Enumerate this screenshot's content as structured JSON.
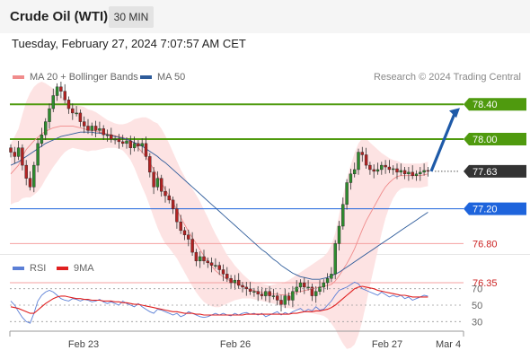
{
  "header": {
    "instrument": "Crude Oil (WTI)",
    "timeframe": "30 MIN"
  },
  "timestamp": "Tuesday, February 27, 2024 7:07:57 AM CET",
  "legend": {
    "ma20_label": "MA 20 + Bollinger Bands",
    "ma20_color": "#f08c8c",
    "ma50_label": "MA 50",
    "ma50_color": "#2d5b9a",
    "credit": "Research © 2024 Trading Central"
  },
  "rsi_legend": {
    "rsi_label": "RSI",
    "rsi_color": "#5b7fd6",
    "ma_label": "9MA",
    "ma_color": "#e02020"
  },
  "colors": {
    "target_green": "#4f9a0e",
    "pivot_blue": "#1e64dc",
    "support_red": "#f4a0a0",
    "support_text": "#cc2222",
    "last_price_bg": "#333333",
    "band_fill": "#fde0e0",
    "candle_green": "#2e8b2e",
    "candle_red": "#b22222",
    "arrow": "#1e5aa8"
  },
  "chart_data": [
    {
      "type": "candlestick",
      "x_ticks": [
        "Feb 23",
        "Feb 26",
        "Feb 27",
        "Mar 4"
      ],
      "y_range": [
        75.9,
        78.7
      ],
      "levels": [
        {
          "label": "78.40",
          "value": 78.4,
          "role": "target"
        },
        {
          "label": "78.00",
          "value": 78.0,
          "role": "target"
        },
        {
          "label": "77.63",
          "value": 77.63,
          "role": "last"
        },
        {
          "label": "77.20",
          "value": 77.2,
          "role": "pivot"
        },
        {
          "label": "76.80",
          "value": 76.8,
          "role": "support"
        },
        {
          "label": "76.35",
          "value": 76.35,
          "role": "support"
        }
      ],
      "close": [
        77.85,
        77.8,
        77.9,
        77.7,
        77.55,
        77.45,
        77.7,
        77.95,
        78.05,
        78.2,
        78.35,
        78.5,
        78.6,
        78.55,
        78.45,
        78.35,
        78.3,
        78.3,
        78.2,
        78.15,
        78.1,
        78.15,
        78.1,
        78.12,
        78.05,
        78.05,
        78.0,
        78.0,
        77.97,
        77.95,
        77.98,
        77.9,
        77.95,
        77.92,
        77.95,
        77.8,
        77.62,
        77.45,
        77.55,
        77.4,
        77.35,
        77.3,
        77.2,
        77.05,
        76.95,
        76.9,
        76.85,
        76.7,
        76.6,
        76.65,
        76.6,
        76.58,
        76.55,
        76.55,
        76.5,
        76.45,
        76.4,
        76.35,
        76.38,
        76.32,
        76.3,
        76.28,
        76.25,
        76.25,
        76.22,
        76.2,
        76.25,
        76.2,
        76.2,
        76.15,
        76.1,
        76.2,
        76.15,
        76.25,
        76.3,
        76.35,
        76.3,
        76.3,
        76.2,
        76.25,
        76.3,
        76.35,
        76.4,
        76.45,
        76.8,
        77.0,
        77.25,
        77.5,
        77.6,
        77.65,
        77.85,
        77.82,
        77.7,
        77.65,
        77.63,
        77.65,
        77.7,
        77.68,
        77.65,
        77.66,
        77.62,
        77.64,
        77.6,
        77.62,
        77.58,
        77.6,
        77.62,
        77.64,
        77.63
      ],
      "ma20": [
        77.6,
        77.65,
        77.7,
        77.8,
        77.88,
        77.93,
        77.98,
        78.02,
        78.06,
        78.09,
        78.11,
        78.13,
        78.14,
        78.15,
        78.15,
        78.15,
        78.15,
        78.14,
        78.13,
        78.12,
        78.1,
        78.1,
        78.09,
        78.08,
        78.07,
        78.06,
        78.05,
        78.04,
        78.03,
        78.02,
        78.0,
        77.98,
        77.95,
        77.9,
        77.85,
        77.8,
        77.73,
        77.65,
        77.58,
        77.5,
        77.42,
        77.35,
        77.27,
        77.19,
        77.1,
        77.02,
        76.94,
        76.87,
        76.8,
        76.73,
        76.66,
        76.6,
        76.54,
        76.49,
        76.45,
        76.42,
        76.39,
        76.37,
        76.35,
        76.33,
        76.31,
        76.29,
        76.27,
        76.26,
        76.25,
        76.24,
        76.23,
        76.22,
        76.22,
        76.22,
        76.21,
        76.21,
        76.22,
        76.23,
        76.24,
        76.25,
        76.26,
        76.27,
        76.28,
        76.29,
        76.3,
        76.31,
        76.32,
        76.33,
        76.37,
        76.43,
        76.5,
        76.57,
        76.65,
        76.74,
        76.85,
        76.96,
        77.06,
        77.14,
        77.22,
        77.3,
        77.38,
        77.45,
        77.5,
        77.54,
        77.57,
        77.58,
        77.58,
        77.58,
        77.58,
        77.58,
        77.58,
        77.59,
        77.6
      ],
      "ma50": [
        77.7,
        77.72,
        77.74,
        77.77,
        77.8,
        77.83,
        77.86,
        77.89,
        77.92,
        77.95,
        77.97,
        77.99,
        78.01,
        78.03,
        78.04,
        78.05,
        78.06,
        78.07,
        78.08,
        78.08,
        78.08,
        78.08,
        78.07,
        78.07,
        78.06,
        78.05,
        78.04,
        78.03,
        78.02,
        78.01,
        78.0,
        77.98,
        77.96,
        77.94,
        77.92,
        77.89,
        77.86,
        77.83,
        77.8,
        77.76,
        77.73,
        77.69,
        77.65,
        77.61,
        77.57,
        77.53,
        77.49,
        77.45,
        77.41,
        77.37,
        77.33,
        77.29,
        77.25,
        77.21,
        77.17,
        77.13,
        77.09,
        77.05,
        77.01,
        76.97,
        76.93,
        76.89,
        76.85,
        76.81,
        76.77,
        76.73,
        76.7,
        76.66,
        76.62,
        76.59,
        76.55,
        76.52,
        76.49,
        76.46,
        76.44,
        76.42,
        76.41,
        76.4,
        76.39,
        76.39,
        76.39,
        76.4,
        76.41,
        76.43,
        76.45,
        76.47,
        76.5,
        76.53,
        76.56,
        76.59,
        76.62,
        76.65,
        76.68,
        76.71,
        76.74,
        76.77,
        76.8,
        76.83,
        76.86,
        76.89,
        76.92,
        76.95,
        76.98,
        77.01,
        77.04,
        77.07,
        77.1,
        77.13,
        77.16
      ],
      "bb_width": [
        0.35,
        0.38,
        0.42,
        0.48,
        0.55,
        0.6,
        0.62,
        0.62,
        0.6,
        0.55,
        0.5,
        0.45,
        0.4,
        0.35,
        0.3,
        0.27,
        0.25,
        0.25,
        0.25,
        0.25,
        0.24,
        0.23,
        0.22,
        0.2,
        0.18,
        0.16,
        0.15,
        0.14,
        0.14,
        0.15,
        0.18,
        0.22,
        0.28,
        0.34,
        0.4,
        0.45,
        0.5,
        0.55,
        0.6,
        0.62,
        0.62,
        0.6,
        0.58,
        0.56,
        0.55,
        0.55,
        0.55,
        0.56,
        0.56,
        0.55,
        0.53,
        0.5,
        0.46,
        0.42,
        0.38,
        0.33,
        0.28,
        0.24,
        0.2,
        0.17,
        0.14,
        0.12,
        0.1,
        0.1,
        0.1,
        0.1,
        0.1,
        0.1,
        0.11,
        0.12,
        0.13,
        0.15,
        0.16,
        0.18,
        0.2,
        0.22,
        0.24,
        0.26,
        0.28,
        0.3,
        0.32,
        0.34,
        0.38,
        0.45,
        0.55,
        0.7,
        0.85,
        0.98,
        1.05,
        1.1,
        1.1,
        1.05,
        0.95,
        0.82,
        0.7,
        0.58,
        0.46,
        0.36,
        0.28,
        0.22,
        0.18,
        0.15,
        0.14,
        0.14,
        0.14,
        0.14,
        0.14,
        0.14,
        0.14
      ],
      "target_arrow": {
        "from": 77.63,
        "to": 78.4
      }
    },
    {
      "type": "line",
      "y_ticks": [
        "70",
        "50",
        "30"
      ],
      "y_range": [
        20,
        80
      ],
      "rsi": [
        55,
        50,
        42,
        35,
        30,
        28,
        40,
        55,
        62,
        66,
        68,
        66,
        62,
        58,
        56,
        55,
        58,
        57,
        55,
        57,
        56,
        54,
        55,
        57,
        54,
        52,
        54,
        52,
        50,
        55,
        52,
        50,
        48,
        52,
        48,
        45,
        42,
        40,
        45,
        44,
        42,
        40,
        38,
        40,
        36,
        38,
        42,
        40,
        38,
        36,
        35,
        36,
        38,
        40,
        38,
        40,
        38,
        37,
        40,
        38,
        40,
        41,
        39,
        40,
        38,
        40,
        36,
        38,
        40,
        42,
        38,
        41,
        39,
        42,
        44,
        46,
        42,
        45,
        43,
        48,
        44,
        45,
        50,
        55,
        62,
        68,
        70,
        72,
        75,
        78,
        76,
        70,
        68,
        66,
        64,
        62,
        66,
        63,
        60,
        62,
        60,
        62,
        58,
        60,
        56,
        58,
        60,
        62,
        61
      ],
      "rsi_ma": [
        48,
        47,
        46,
        44,
        42,
        40,
        40,
        44,
        48,
        52,
        55,
        58,
        60,
        61,
        61,
        60,
        59,
        58,
        58,
        57,
        57,
        56,
        56,
        56,
        55,
        55,
        55,
        54,
        54,
        53,
        53,
        52,
        51,
        51,
        50,
        49,
        48,
        47,
        46,
        45,
        44,
        43,
        42,
        42,
        41,
        40,
        40,
        40,
        39,
        39,
        38,
        38,
        38,
        38,
        38,
        38,
        38,
        38,
        38,
        38,
        38,
        39,
        39,
        39,
        39,
        39,
        39,
        39,
        39,
        39,
        39,
        39,
        39,
        40,
        40,
        41,
        42,
        42,
        42,
        43,
        43,
        44,
        45,
        47,
        50,
        54,
        58,
        62,
        66,
        70,
        72,
        73,
        72,
        71,
        70,
        68,
        67,
        66,
        65,
        64,
        63,
        62,
        62,
        61,
        60,
        60,
        60,
        60,
        60
      ]
    }
  ]
}
